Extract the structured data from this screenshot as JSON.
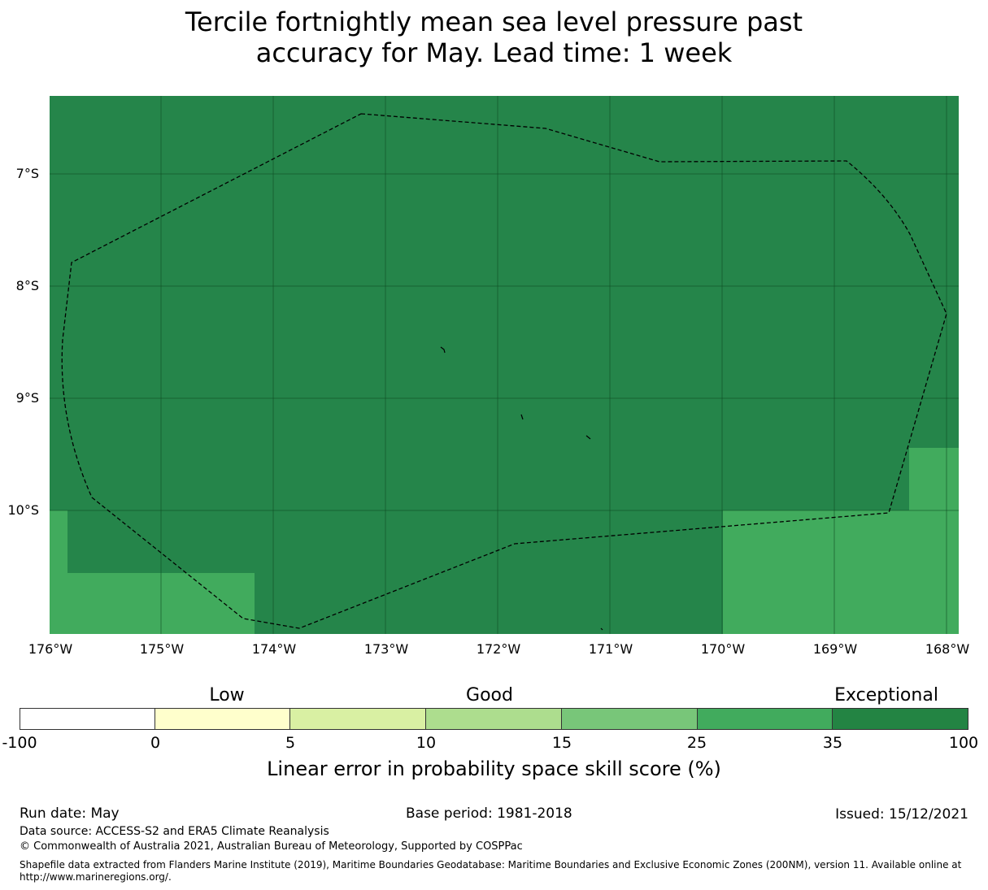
{
  "title": {
    "line1": "Tercile fortnightly mean sea level pressure past",
    "line2": "accuracy for May. Lead time: 1 week"
  },
  "map": {
    "background_color": "#25854a",
    "lat_labels": [
      "7°S",
      "8°S",
      "9°S",
      "10°S"
    ],
    "lon_labels": [
      "176°W",
      "175°W",
      "174°W",
      "173°W",
      "172°W",
      "171°W",
      "170°W",
      "169°W",
      "168°W"
    ],
    "grid": true,
    "boundary_style": "dashed"
  },
  "colorbar": {
    "categories": [
      "Low",
      "Good",
      "Exceptional"
    ],
    "ticks": [
      "-100",
      "0",
      "5",
      "10",
      "15",
      "25",
      "35",
      "100"
    ],
    "colors": [
      "#ffffff",
      "#ffffcc",
      "#d9f0a3",
      "#addd8e",
      "#78c679",
      "#41ab5d",
      "#238443"
    ],
    "title": "Linear error in probability space skill score (%)"
  },
  "footer": {
    "run_date": "Run date: May",
    "base_period": "Base period: 1981-2018",
    "issued": "Issued: 15/12/2021",
    "data_source": "Data source: ACCESS-S2 and ERA5 Climate Reanalysis",
    "copyright": "© Commonwealth of Australia 2021, Australian Bureau of Meteorology, Supported by COSPPac",
    "shapefile_line1": "Shapefile data extracted from Flanders Marine Institute (2019), Maritime Boundaries Geodatabase: Maritime Boundaries and Exclusive Economic Zones (200NM), version 11. Available online at",
    "shapefile_line2": "http://www.marineregions.org/."
  }
}
